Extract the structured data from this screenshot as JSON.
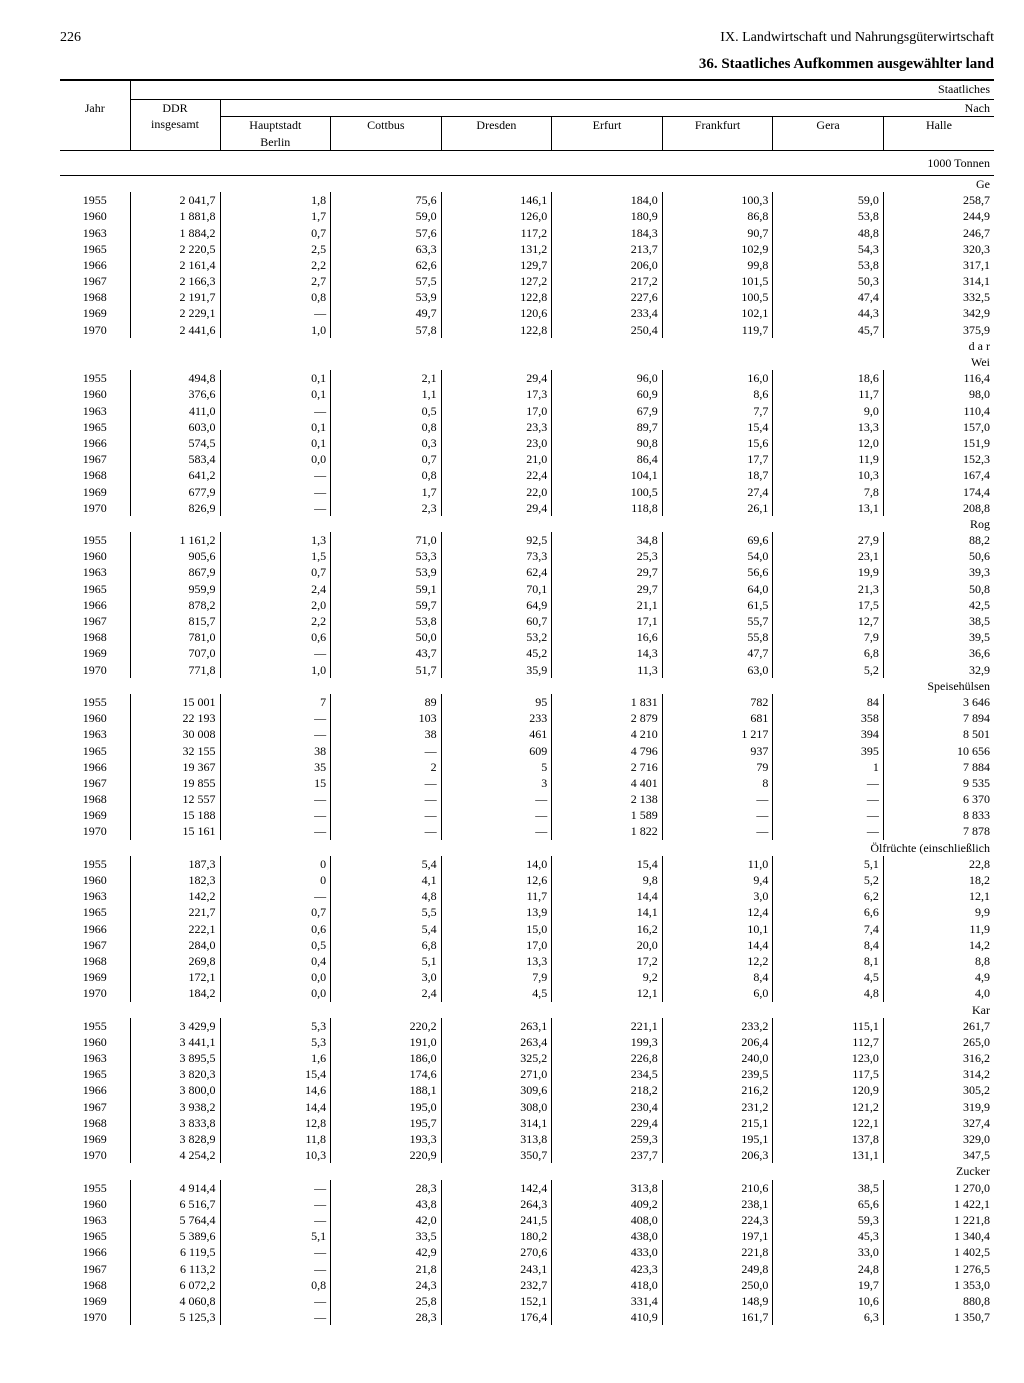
{
  "page_number": "226",
  "chapter_heading": "IX. Landwirtschaft und Nahrungsgüterwirtschaft",
  "table_title": "36. Staatliches Aufkommen ausgewählter land",
  "header": {
    "top_right_1": "Staatliches",
    "top_right_2": "Nach",
    "jahr": "Jahr",
    "ddr": "DDR\ninsgesamt",
    "cols": [
      "Hauptstadt\nBerlin",
      "Cottbus",
      "Dresden",
      "Erfurt",
      "Frankfurt",
      "Gera",
      "Halle"
    ],
    "unit": "1000 Tonnen"
  },
  "years": [
    "1955",
    "1960",
    "1963",
    "1965",
    "1966",
    "1967",
    "1968",
    "1969",
    "1970"
  ],
  "sections": [
    {
      "label": "Ge",
      "rows": [
        [
          "2 041,7",
          "1,8",
          "75,6",
          "146,1",
          "184,0",
          "100,3",
          "59,0",
          "258,7"
        ],
        [
          "1 881,8",
          "1,7",
          "59,0",
          "126,0",
          "180,9",
          "86,8",
          "53,8",
          "244,9"
        ],
        [
          "1 884,2",
          "0,7",
          "57,6",
          "117,2",
          "184,3",
          "90,7",
          "48,8",
          "246,7"
        ],
        [
          "2 220,5",
          "2,5",
          "63,3",
          "131,2",
          "213,7",
          "102,9",
          "54,3",
          "320,3"
        ],
        [
          "2 161,4",
          "2,2",
          "62,6",
          "129,7",
          "206,0",
          "99,8",
          "53,8",
          "317,1"
        ],
        [
          "2 166,3",
          "2,7",
          "57,5",
          "127,2",
          "217,2",
          "101,5",
          "50,3",
          "314,1"
        ],
        [
          "2 191,7",
          "0,8",
          "53,9",
          "122,8",
          "227,6",
          "100,5",
          "47,4",
          "332,5"
        ],
        [
          "2 229,1",
          "—",
          "49,7",
          "120,6",
          "233,4",
          "102,1",
          "44,3",
          "342,9"
        ],
        [
          "2 441,6",
          "1,0",
          "57,8",
          "122,8",
          "250,4",
          "119,7",
          "45,7",
          "375,9"
        ]
      ]
    },
    {
      "label": "d a r\nWei",
      "rows": [
        [
          "494,8",
          "0,1",
          "2,1",
          "29,4",
          "96,0",
          "16,0",
          "18,6",
          "116,4"
        ],
        [
          "376,6",
          "0,1",
          "1,1",
          "17,3",
          "60,9",
          "8,6",
          "11,7",
          "98,0"
        ],
        [
          "411,0",
          "—",
          "0,5",
          "17,0",
          "67,9",
          "7,7",
          "9,0",
          "110,4"
        ],
        [
          "603,0",
          "0,1",
          "0,8",
          "23,3",
          "89,7",
          "15,4",
          "13,3",
          "157,0"
        ],
        [
          "574,5",
          "0,1",
          "0,3",
          "23,0",
          "90,8",
          "15,6",
          "12,0",
          "151,9"
        ],
        [
          "583,4",
          "0,0",
          "0,7",
          "21,0",
          "86,4",
          "17,7",
          "11,9",
          "152,3"
        ],
        [
          "641,2",
          "—",
          "0,8",
          "22,4",
          "104,1",
          "18,7",
          "10,3",
          "167,4"
        ],
        [
          "677,9",
          "—",
          "1,7",
          "22,0",
          "100,5",
          "27,4",
          "7,8",
          "174,4"
        ],
        [
          "826,9",
          "—",
          "2,3",
          "29,4",
          "118,8",
          "26,1",
          "13,1",
          "208,8"
        ]
      ]
    },
    {
      "label": "Rog",
      "rows": [
        [
          "1 161,2",
          "1,3",
          "71,0",
          "92,5",
          "34,8",
          "69,6",
          "27,9",
          "88,2"
        ],
        [
          "905,6",
          "1,5",
          "53,3",
          "73,3",
          "25,3",
          "54,0",
          "23,1",
          "50,6"
        ],
        [
          "867,9",
          "0,7",
          "53,9",
          "62,4",
          "29,7",
          "56,6",
          "19,9",
          "39,3"
        ],
        [
          "959,9",
          "2,4",
          "59,1",
          "70,1",
          "29,7",
          "64,0",
          "21,3",
          "50,8"
        ],
        [
          "878,2",
          "2,0",
          "59,7",
          "64,9",
          "21,1",
          "61,5",
          "17,5",
          "42,5"
        ],
        [
          "815,7",
          "2,2",
          "53,8",
          "60,7",
          "17,1",
          "55,7",
          "12,7",
          "38,5"
        ],
        [
          "781,0",
          "0,6",
          "50,0",
          "53,2",
          "16,6",
          "55,8",
          "7,9",
          "39,5"
        ],
        [
          "707,0",
          "—",
          "43,7",
          "45,2",
          "14,3",
          "47,7",
          "6,8",
          "36,6"
        ],
        [
          "771,8",
          "1,0",
          "51,7",
          "35,9",
          "11,3",
          "63,0",
          "5,2",
          "32,9"
        ]
      ]
    },
    {
      "label": "Speisehülsen",
      "rows": [
        [
          "15 001",
          "7",
          "89",
          "95",
          "1 831",
          "782",
          "84",
          "3 646"
        ],
        [
          "22 193",
          "—",
          "103",
          "233",
          "2 879",
          "681",
          "358",
          "7 894"
        ],
        [
          "30 008",
          "—",
          "38",
          "461",
          "4 210",
          "1 217",
          "394",
          "8 501"
        ],
        [
          "32 155",
          "38",
          "—",
          "609",
          "4 796",
          "937",
          "395",
          "10 656"
        ],
        [
          "19 367",
          "35",
          "2",
          "5",
          "2 716",
          "79",
          "1",
          "7 884"
        ],
        [
          "19 855",
          "15",
          "—",
          "3",
          "4 401",
          "8",
          "—",
          "9 535"
        ],
        [
          "12 557",
          "—",
          "—",
          "—",
          "2 138",
          "—",
          "—",
          "6 370"
        ],
        [
          "15 188",
          "—",
          "—",
          "—",
          "1 589",
          "—",
          "—",
          "8 833"
        ],
        [
          "15 161",
          "—",
          "—",
          "—",
          "1 822",
          "—",
          "—",
          "7 878"
        ]
      ]
    },
    {
      "label": "Ölfrüchte (einschließlich",
      "rows": [
        [
          "187,3",
          "0",
          "5,4",
          "14,0",
          "15,4",
          "11,0",
          "5,1",
          "22,8"
        ],
        [
          "182,3",
          "0",
          "4,1",
          "12,6",
          "9,8",
          "9,4",
          "5,2",
          "18,2"
        ],
        [
          "142,2",
          "—",
          "4,8",
          "11,7",
          "14,4",
          "3,0",
          "6,2",
          "12,1"
        ],
        [
          "221,7",
          "0,7",
          "5,5",
          "13,9",
          "14,1",
          "12,4",
          "6,6",
          "9,9"
        ],
        [
          "222,1",
          "0,6",
          "5,4",
          "15,0",
          "16,2",
          "10,1",
          "7,4",
          "11,9"
        ],
        [
          "284,0",
          "0,5",
          "6,8",
          "17,0",
          "20,0",
          "14,4",
          "8,4",
          "14,2"
        ],
        [
          "269,8",
          "0,4",
          "5,1",
          "13,3",
          "17,2",
          "12,2",
          "8,1",
          "8,8"
        ],
        [
          "172,1",
          "0,0",
          "3,0",
          "7,9",
          "9,2",
          "8,4",
          "4,5",
          "4,9"
        ],
        [
          "184,2",
          "0,0",
          "2,4",
          "4,5",
          "12,1",
          "6,0",
          "4,8",
          "4,0"
        ]
      ]
    },
    {
      "label": "Kar",
      "rows": [
        [
          "3 429,9",
          "5,3",
          "220,2",
          "263,1",
          "221,1",
          "233,2",
          "115,1",
          "261,7"
        ],
        [
          "3 441,1",
          "5,3",
          "191,0",
          "263,4",
          "199,3",
          "206,4",
          "112,7",
          "265,0"
        ],
        [
          "3 895,5",
          "1,6",
          "186,0",
          "325,2",
          "226,8",
          "240,0",
          "123,0",
          "316,2"
        ],
        [
          "3 820,3",
          "15,4",
          "174,6",
          "271,0",
          "234,5",
          "239,5",
          "117,5",
          "314,2"
        ],
        [
          "3 800,0",
          "14,6",
          "188,1",
          "309,6",
          "218,2",
          "216,2",
          "120,9",
          "305,2"
        ],
        [
          "3 938,2",
          "14,4",
          "195,0",
          "308,0",
          "230,4",
          "231,2",
          "121,2",
          "319,9"
        ],
        [
          "3 833,8",
          "12,8",
          "195,7",
          "314,1",
          "229,4",
          "215,1",
          "122,1",
          "327,4"
        ],
        [
          "3 828,9",
          "11,8",
          "193,3",
          "313,8",
          "259,3",
          "195,1",
          "137,8",
          "329,0"
        ],
        [
          "4 254,2",
          "10,3",
          "220,9",
          "350,7",
          "237,7",
          "206,3",
          "131,1",
          "347,5"
        ]
      ]
    },
    {
      "label": "Zucker",
      "rows": [
        [
          "4 914,4",
          "—",
          "28,3",
          "142,4",
          "313,8",
          "210,6",
          "38,5",
          "1 270,0"
        ],
        [
          "6 516,7",
          "—",
          "43,8",
          "264,3",
          "409,2",
          "238,1",
          "65,6",
          "1 422,1"
        ],
        [
          "5 764,4",
          "—",
          "42,0",
          "241,5",
          "408,0",
          "224,3",
          "59,3",
          "1 221,8"
        ],
        [
          "5 389,6",
          "5,1",
          "33,5",
          "180,2",
          "438,0",
          "197,1",
          "45,3",
          "1 340,4"
        ],
        [
          "6 119,5",
          "—",
          "42,9",
          "270,6",
          "433,0",
          "221,8",
          "33,0",
          "1 402,5"
        ],
        [
          "6 113,2",
          "—",
          "21,8",
          "243,1",
          "423,3",
          "249,8",
          "24,8",
          "1 276,5"
        ],
        [
          "6 072,2",
          "0,8",
          "24,3",
          "232,7",
          "418,0",
          "250,0",
          "19,7",
          "1 353,0"
        ],
        [
          "4 060,8",
          "—",
          "25,8",
          "152,1",
          "331,4",
          "148,9",
          "10,6",
          "880,8"
        ],
        [
          "5 125,3",
          "—",
          "28,3",
          "176,4",
          "410,9",
          "161,7",
          "6,3",
          "1 350,7"
        ]
      ]
    }
  ]
}
